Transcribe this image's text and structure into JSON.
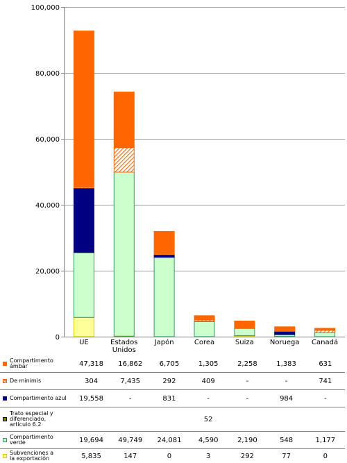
{
  "chart_data": {
    "type": "bar",
    "stacked": true,
    "categories": [
      "UE",
      "Estados Unidos",
      "Japón",
      "Corea",
      "Suiza",
      "Noruega",
      "Canadá"
    ],
    "category_lines": [
      [
        "UE"
      ],
      [
        "Estados",
        "Unidos"
      ],
      [
        "Japón"
      ],
      [
        "Corea"
      ],
      [
        "Suiza"
      ],
      [
        "Noruega"
      ],
      [
        "Canadá"
      ]
    ],
    "ylim": [
      0,
      100000
    ],
    "yticks": [
      0,
      20000,
      40000,
      60000,
      80000,
      100000
    ],
    "ytick_labels": [
      "0",
      "20,000",
      "40,000",
      "60,000",
      "80,000",
      "100,000"
    ],
    "grid": true,
    "legend": "table-below",
    "series": [
      {
        "name": "Subvenciones a la exportación",
        "name_lines": [
          "Subvenciones a",
          "la exportación"
        ],
        "color": "#ffff99",
        "edge": "#e0c800",
        "hatch": false,
        "values": [
          5835,
          147,
          0,
          3,
          292,
          77,
          0
        ],
        "labels": [
          "5,835",
          "147",
          "0",
          "3",
          "292",
          "77",
          "0"
        ]
      },
      {
        "name": "Compartimento verde",
        "name_lines": [
          "Compartimento",
          "verde"
        ],
        "color": "#ccffcc",
        "edge": "#339966",
        "hatch": false,
        "values": [
          19694,
          49749,
          24081,
          4590,
          2190,
          548,
          1177
        ],
        "labels": [
          "19,694",
          "49,749",
          "24,081",
          "4,590",
          "2,190",
          "548",
          "1,177"
        ]
      },
      {
        "name": "Trato especial y diferenciado, artículo 6.2",
        "name_lines": [
          "Trato especial y",
          "diferenciado,",
          "artículo 6.2"
        ],
        "color": "#808000",
        "edge": "#000000",
        "hatch": false,
        "values": [
          0,
          0,
          0,
          52,
          0,
          0,
          0
        ],
        "labels": [
          "",
          "",
          "",
          "52",
          "",
          "",
          ""
        ]
      },
      {
        "name": "Compartimento azul",
        "name_lines": [
          "Compartimento azul"
        ],
        "color": "#000080",
        "edge": "#000080",
        "hatch": false,
        "values": [
          19558,
          0,
          831,
          0,
          0,
          984,
          0
        ],
        "labels": [
          "19,558",
          "-",
          "831",
          "-",
          "-",
          "984",
          "-"
        ]
      },
      {
        "name": "De minimis",
        "name_lines": [
          "De minimis"
        ],
        "color": "#ff6600",
        "edge": "#ff6600",
        "hatch": true,
        "values": [
          304,
          7435,
          292,
          409,
          0,
          0,
          741
        ],
        "labels": [
          "304",
          "7,435",
          "292",
          "409",
          "-",
          "-",
          "741"
        ]
      },
      {
        "name": "Compartimento ámbar",
        "name_lines": [
          "Compartimento",
          "ámbar"
        ],
        "color": "#ff6600",
        "edge": "#ff6600",
        "hatch": false,
        "values": [
          47318,
          16862,
          6705,
          1305,
          2258,
          1383,
          631
        ],
        "labels": [
          "47,318",
          "16,862",
          "6,705",
          "1,305",
          "2,258",
          "1,383",
          "631"
        ]
      }
    ],
    "table_order": [
      "Compartimento ámbar",
      "De minimis",
      "Compartimento azul",
      "Trato especial y diferenciado, artículo 6.2",
      "Compartimento verde",
      "Subvenciones a la exportación"
    ]
  }
}
